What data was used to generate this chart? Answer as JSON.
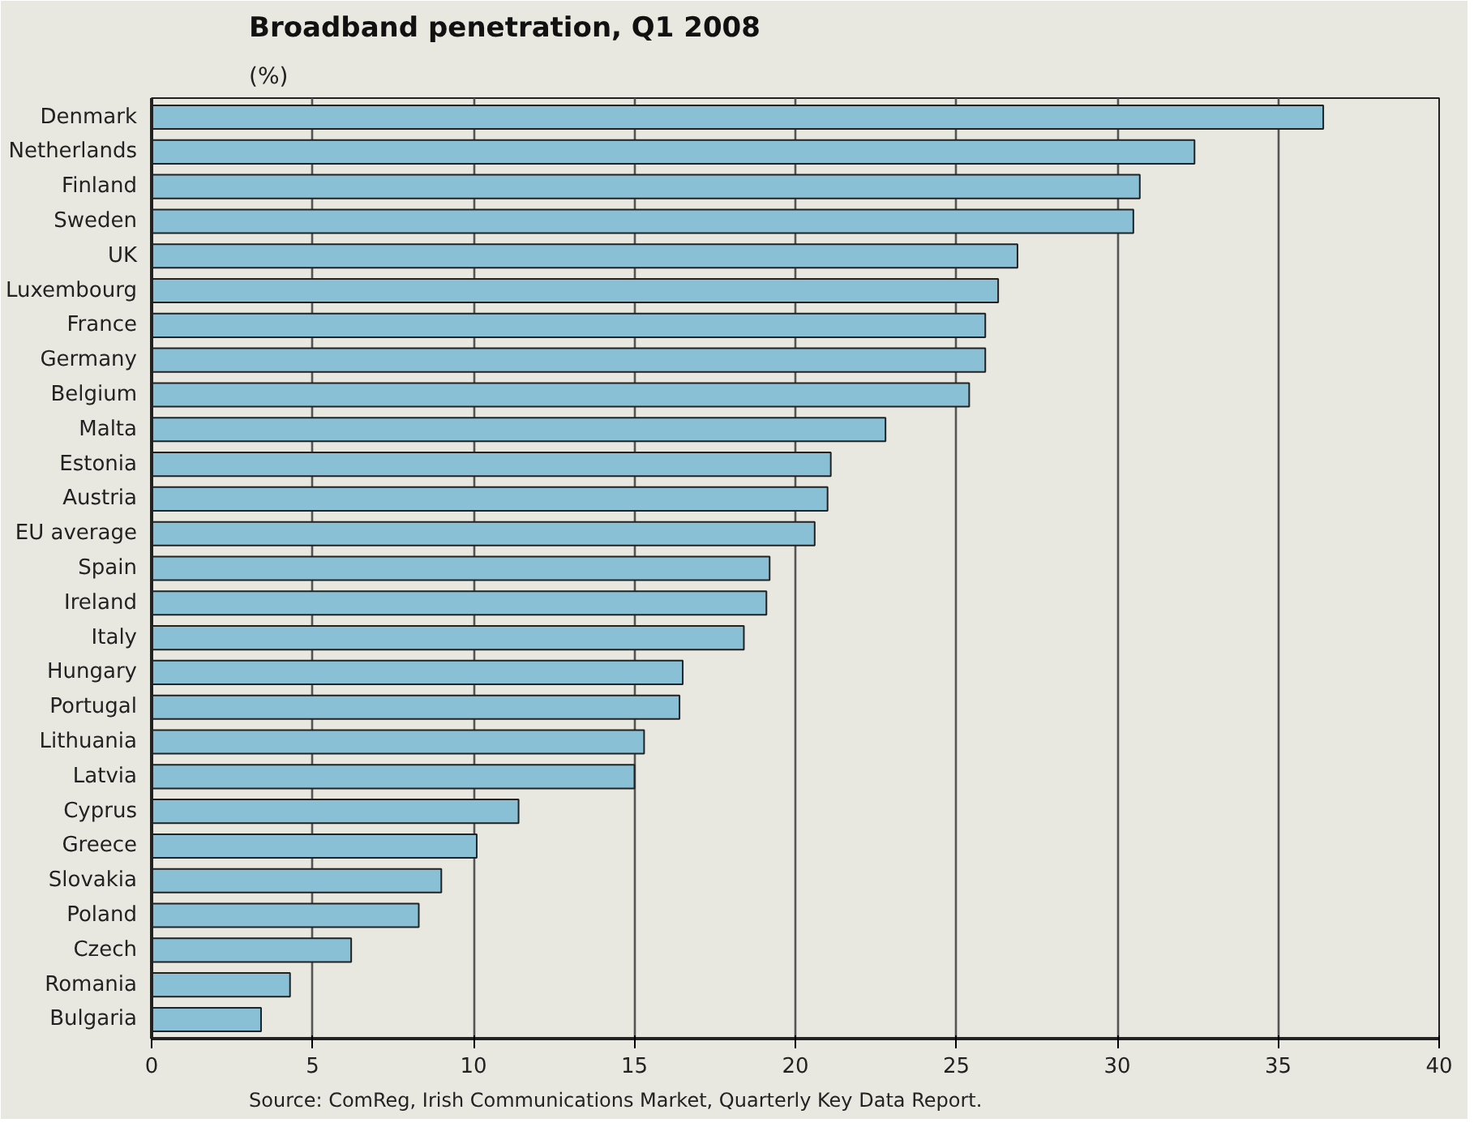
{
  "chart_data": {
    "type": "bar",
    "orientation": "horizontal",
    "title": "Broadband penetration, Q1 2008",
    "subtitle": "(%)",
    "categories": [
      "Denmark",
      "Netherlands",
      "Finland",
      "Sweden",
      "UK",
      "Luxembourg",
      "France",
      "Germany",
      "Belgium",
      "Malta",
      "Estonia",
      "Austria",
      "EU average",
      "Spain",
      "Ireland",
      "Italy",
      "Hungary",
      "Portugal",
      "Lithuania",
      "Latvia",
      "Cyprus",
      "Greece",
      "Slovakia",
      "Poland",
      "Czech",
      "Romania",
      "Bulgaria"
    ],
    "values": [
      36.4,
      32.4,
      30.7,
      30.5,
      26.9,
      26.3,
      25.9,
      25.9,
      25.4,
      22.8,
      21.1,
      21.0,
      20.6,
      19.2,
      19.1,
      18.4,
      16.5,
      16.4,
      15.3,
      15.0,
      11.4,
      10.1,
      9.0,
      8.3,
      6.2,
      4.3,
      3.4
    ],
    "color": "#8ac0d6",
    "xlim": [
      0,
      40
    ],
    "xticks": [
      0,
      5,
      10,
      15,
      20,
      25,
      30,
      35,
      40
    ],
    "grid": "x",
    "annotations": [
      "Source: ComReg, Irish Communications Market, Quarterly Key Data Report."
    ]
  }
}
